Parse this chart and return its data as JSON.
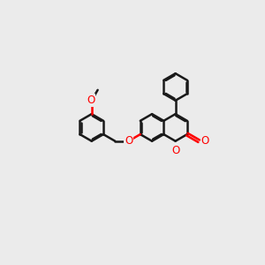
{
  "bg_color": "#ebebeb",
  "bond_color": "#1a1a1a",
  "oxygen_color": "#ff0000",
  "bond_width": 1.8,
  "dbo": 0.045,
  "figsize": [
    3.0,
    3.0
  ],
  "dpi": 100,
  "xlim": [
    0,
    10
  ],
  "ylim": [
    0,
    10
  ]
}
